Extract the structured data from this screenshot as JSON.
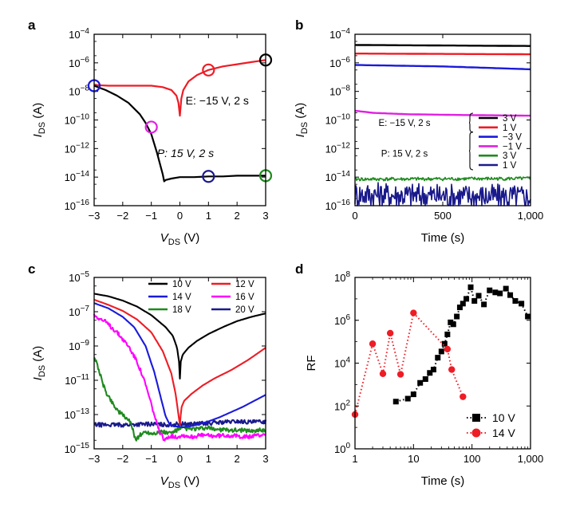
{
  "chart_data": [
    {
      "panel": "a",
      "type": "line",
      "xlabel": "V_DS (V)",
      "ylabel": "I_DS (A)",
      "yscale": "log",
      "xlim": [
        -3,
        3
      ],
      "ylim_exp": [
        -16,
        -4
      ],
      "xticks": [
        -3,
        -2,
        -1,
        0,
        1,
        2,
        3
      ],
      "xtick_labels": [
        "−3",
        "−2",
        "−1",
        "0",
        "1",
        "2",
        "3"
      ],
      "ytick_exps": [
        -16,
        -14,
        -12,
        -10,
        -8,
        -6,
        -4
      ],
      "annotations": [
        "E: −15 V, 2 s",
        "P: 15 V, 2 s"
      ],
      "series": [
        {
          "name": "E: −15 V, 2 s",
          "color": "#ee1c25",
          "x": [
            -3,
            -2.5,
            -2,
            -1.5,
            -1,
            -0.6,
            -0.3,
            -0.12,
            -0.05,
            0,
            0.05,
            0.12,
            0.3,
            0.6,
            1,
            1.5,
            2,
            2.5,
            3
          ],
          "y_exp": [
            -7.55,
            -7.6,
            -7.6,
            -7.6,
            -7.6,
            -7.7,
            -7.9,
            -8.3,
            -8.8,
            -9.7,
            -8.5,
            -7.9,
            -7.3,
            -6.85,
            -6.5,
            -6.25,
            -6.1,
            -5.95,
            -5.8
          ]
        },
        {
          "name": "P: 15 V, 2 s",
          "color": "#000000",
          "x": [
            -3,
            -2.6,
            -2.2,
            -1.8,
            -1.4,
            -1.2,
            -1.0,
            -0.8,
            -0.6,
            -0.55,
            -0.5,
            -0.3,
            0,
            0.5,
            1,
            1.5,
            2,
            2.5,
            3
          ],
          "y_exp": [
            -7.6,
            -7.9,
            -8.3,
            -8.8,
            -9.6,
            -10.2,
            -11.0,
            -12.3,
            -13.8,
            -14.3,
            -14.2,
            -14.1,
            -14.0,
            -14.0,
            -13.95,
            -13.95,
            -13.9,
            -13.9,
            -13.9
          ]
        }
      ],
      "markers": [
        {
          "x": 3,
          "y_exp": -5.8,
          "color": "#000000"
        },
        {
          "x": 1,
          "y_exp": -6.5,
          "color": "#ee1c25"
        },
        {
          "x": -3,
          "y_exp": -7.6,
          "color": "#1a1adb"
        },
        {
          "x": -1,
          "y_exp": -10.5,
          "color": "#e020e0"
        },
        {
          "x": 1,
          "y_exp": -13.95,
          "color": "#1a1a8c"
        },
        {
          "x": 3,
          "y_exp": -13.9,
          "color": "#1e8a1e"
        }
      ]
    },
    {
      "panel": "b",
      "type": "line",
      "xlabel": "Time (s)",
      "ylabel": "I_DS (A)",
      "yscale": "log",
      "xlim": [
        0,
        1000
      ],
      "ylim_exp": [
        -16,
        -4
      ],
      "xticks": [
        0,
        500,
        1000
      ],
      "xtick_labels": [
        "0",
        "500",
        "1,000"
      ],
      "ytick_exps": [
        -16,
        -14,
        -12,
        -10,
        -8,
        -6,
        -4
      ],
      "legend_groups": [
        "E: −15 V, 2 s",
        "P: 15 V, 2 s"
      ],
      "series": [
        {
          "name": "3 V",
          "group": "E: −15 V, 2 s",
          "color": "#000000",
          "x": [
            0,
            1000
          ],
          "y_exp": [
            -4.75,
            -4.82
          ]
        },
        {
          "name": "1 V",
          "group": "E: −15 V, 2 s",
          "color": "#ee1c25",
          "x": [
            0,
            1000
          ],
          "y_exp": [
            -5.35,
            -5.4
          ]
        },
        {
          "name": "−3 V",
          "group": "P: 15 V, 2 s",
          "color": "#1a1adb",
          "x": [
            0,
            500,
            1000
          ],
          "y_exp": [
            -6.15,
            -6.25,
            -6.45
          ]
        },
        {
          "name": "−1 V",
          "group": "P: 15 V, 2 s",
          "color": "#e020e0",
          "x": [
            0,
            100,
            300,
            600,
            1000
          ],
          "y_exp": [
            -9.35,
            -9.5,
            -9.6,
            -9.65,
            -9.7
          ]
        },
        {
          "name": "3 V",
          "group": "P: 15 V, 2 s",
          "color": "#1e8a1e",
          "x": [
            0,
            1000
          ],
          "y_exp": [
            -14.15,
            -14.1
          ],
          "noise": 0.12
        },
        {
          "name": "1 V",
          "group": "P: 15 V, 2 s",
          "color": "#1a1a8c",
          "x": [
            0,
            1000
          ],
          "y_exp": [
            -15.2,
            -15.4
          ],
          "noise": 0.9
        }
      ]
    },
    {
      "panel": "c",
      "type": "line",
      "xlabel": "V_DS (V)",
      "ylabel": "I_DS (A)",
      "yscale": "log",
      "xlim": [
        -3,
        3
      ],
      "ylim_exp": [
        -15,
        -5
      ],
      "xticks": [
        -3,
        -2,
        -1,
        0,
        1,
        2,
        3
      ],
      "xtick_labels": [
        "−3",
        "−2",
        "−1",
        "0",
        "1",
        "2",
        "3"
      ],
      "ytick_exps": [
        -15,
        -13,
        -11,
        -9,
        -7,
        -5
      ],
      "series": [
        {
          "name": "10 V",
          "color": "#000000",
          "x": [
            -3,
            -2.5,
            -2,
            -1.5,
            -1,
            -0.5,
            -0.25,
            -0.1,
            -0.03,
            0,
            0.03,
            0.1,
            0.3,
            0.6,
            1,
            1.5,
            2,
            2.5,
            3
          ],
          "y_exp": [
            -5.95,
            -6.1,
            -6.35,
            -6.7,
            -7.2,
            -7.9,
            -8.4,
            -9.1,
            -9.9,
            -10.9,
            -9.9,
            -9.5,
            -9.1,
            -8.7,
            -8.3,
            -7.9,
            -7.55,
            -7.3,
            -7.1
          ]
        },
        {
          "name": "12 V",
          "color": "#ee1c25",
          "x": [
            -3,
            -2.5,
            -2,
            -1.5,
            -1,
            -0.6,
            -0.3,
            -0.15,
            -0.05,
            0,
            0.05,
            0.15,
            0.4,
            0.8,
            1.2,
            1.8,
            2.4,
            3
          ],
          "y_exp": [
            -6.3,
            -6.6,
            -6.95,
            -7.45,
            -8.2,
            -9.3,
            -10.6,
            -11.8,
            -13.0,
            -13.6,
            -12.6,
            -12.2,
            -11.8,
            -11.3,
            -10.9,
            -10.4,
            -9.8,
            -9.1
          ]
        },
        {
          "name": "14 V",
          "color": "#1a1adb",
          "x": [
            -3,
            -2.5,
            -2,
            -1.6,
            -1.2,
            -0.9,
            -0.7,
            -0.5,
            -0.35,
            -0.2,
            -0.05,
            0.1,
            0.3,
            0.6,
            1,
            1.4,
            1.8,
            2.2,
            2.6,
            3
          ],
          "y_exp": [
            -6.5,
            -6.8,
            -7.3,
            -7.9,
            -9.0,
            -10.5,
            -11.8,
            -13.1,
            -13.6,
            -13.7,
            -13.7,
            -13.75,
            -13.7,
            -13.6,
            -13.4,
            -13.15,
            -12.85,
            -12.55,
            -12.2,
            -11.85
          ]
        },
        {
          "name": "16 V",
          "color": "#ff00ff",
          "x": [
            -3,
            -2.6,
            -2.2,
            -1.8,
            -1.5,
            -1.25,
            -1.05,
            -0.85,
            -0.7,
            -0.6,
            -0.55,
            -0.45,
            -0.3,
            -0.1,
            0.1,
            0.4,
            0.8,
            1.2,
            1.6,
            2.0,
            2.4,
            2.8,
            3
          ],
          "y_exp": [
            -7.2,
            -7.6,
            -8.2,
            -9.0,
            -9.9,
            -11.0,
            -12.1,
            -13.3,
            -14.1,
            -14.3,
            -14.6,
            -14.3,
            -14.25,
            -14.3,
            -14.2,
            -14.3,
            -14.2,
            -14.25,
            -14.2,
            -14.25,
            -14.3,
            -14.2,
            -14.1
          ]
        },
        {
          "name": "18 V",
          "color": "#1e8a1e",
          "x": [
            -3,
            -2.85,
            -2.7,
            -2.55,
            -2.4,
            -2.25,
            -2.1,
            -1.95,
            -1.8,
            -1.65,
            -1.55,
            -1.4,
            -1.2,
            -1.0,
            -0.8,
            -0.6,
            -0.4,
            -0.2,
            0,
            0.5,
            1,
            1.5,
            2,
            2.5,
            3
          ],
          "y_exp": [
            -9.6,
            -10.3,
            -11.2,
            -11.8,
            -12.2,
            -12.6,
            -12.9,
            -13.1,
            -13.3,
            -13.8,
            -14.5,
            -14.2,
            -14.0,
            -14.1,
            -14.05,
            -14.0,
            -14.1,
            -14.0,
            -13.8,
            -13.85,
            -13.8,
            -13.9,
            -13.9,
            -13.95,
            -13.9
          ]
        },
        {
          "name": "20 V",
          "color": "#1a1a8c",
          "x": [
            -3,
            -2,
            -1,
            -0.5,
            0,
            0.5,
            1,
            1.5,
            2,
            2.5,
            3
          ],
          "y_exp": [
            -13.6,
            -13.6,
            -13.55,
            -13.6,
            -13.55,
            -13.55,
            -13.5,
            -13.45,
            -13.4,
            -13.45,
            -13.4
          ]
        }
      ],
      "noise_series": [
        "16 V",
        "18 V",
        "20 V"
      ]
    },
    {
      "panel": "d",
      "type": "scatter",
      "xlabel": "Time (s)",
      "ylabel": "RF",
      "xscale": "log",
      "yscale": "log",
      "xlim_exp": [
        0,
        3
      ],
      "ylim_exp": [
        0,
        8
      ],
      "xticks": [
        1,
        10,
        100,
        1000
      ],
      "xtick_labels": [
        "1",
        "10",
        "100",
        "1,000"
      ],
      "ytick_exps": [
        0,
        2,
        4,
        6,
        8
      ],
      "series": [
        {
          "name": "10 V",
          "color": "#000000",
          "marker": "square",
          "x": [
            5,
            8,
            10,
            13,
            16,
            19,
            22,
            26,
            30,
            34,
            38,
            43,
            48,
            55,
            62,
            70,
            80,
            95,
            110,
            130,
            160,
            200,
            250,
            300,
            380,
            450,
            550,
            700,
            900
          ],
          "y": [
            160,
            220,
            350,
            1200,
            1800,
            3500,
            5000,
            18000,
            35000,
            80000,
            220000,
            800000,
            650000,
            1500000,
            4000000,
            6000000,
            10000000,
            35000000,
            8000000,
            14000000,
            5500000,
            25000000,
            20000000,
            18000000,
            30000000,
            15000000,
            8000000,
            6000000,
            1500000
          ]
        },
        {
          "name": "14 V",
          "color": "#ee1c25",
          "marker": "circle",
          "x": [
            1,
            2,
            3,
            4,
            6,
            10,
            38,
            45,
            70
          ],
          "y": [
            40,
            80000,
            3200,
            250000,
            3000,
            2200000,
            45000,
            5000,
            270
          ]
        }
      ]
    }
  ]
}
